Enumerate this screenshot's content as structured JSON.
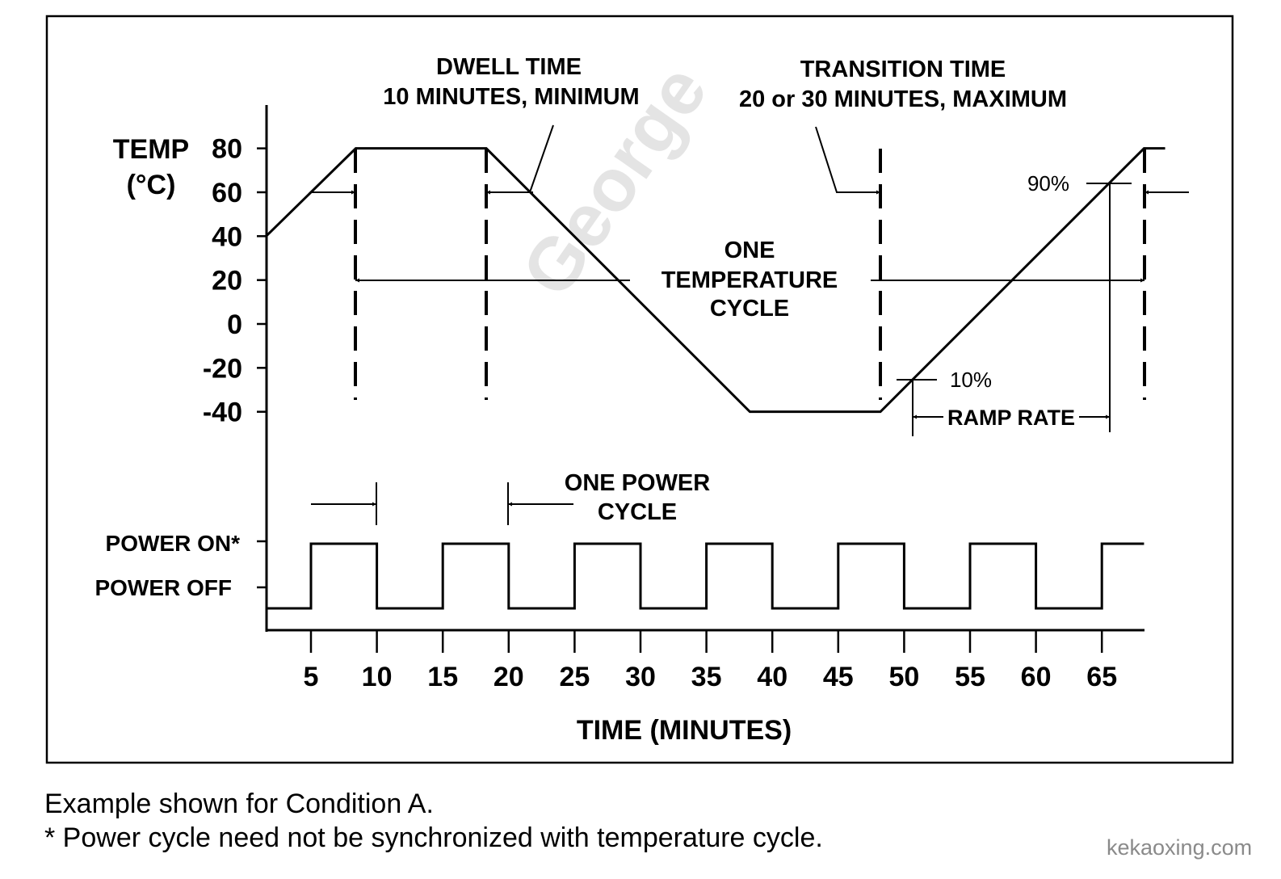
{
  "chart_data": {
    "type": "line",
    "title": "",
    "xlabel": "TIME (MINUTES)",
    "ylabel_line1": "TEMP",
    "ylabel_line2": "(°C)",
    "x_ticks": [
      "5",
      "10",
      "15",
      "20",
      "25",
      "30",
      "35",
      "40",
      "45",
      "50",
      "55",
      "60",
      "65"
    ],
    "x_tick_values": [
      5,
      10,
      15,
      20,
      25,
      30,
      35,
      40,
      45,
      50,
      55,
      60,
      65
    ],
    "y_ticks": [
      "80",
      "60",
      "40",
      "20",
      "0",
      "-20",
      "-40"
    ],
    "y_tick_values": [
      80,
      60,
      40,
      20,
      0,
      -20,
      -40
    ],
    "ylim": [
      -40,
      80
    ],
    "temperature_profile": {
      "name": "temperature",
      "x": [
        1.6,
        8.4,
        18.3,
        38.3,
        48.2,
        68.2,
        69.8
      ],
      "y": [
        40,
        80,
        80,
        -40,
        -40,
        80,
        80
      ]
    },
    "power_cycle": {
      "name": "power",
      "start": 1.6,
      "end": 68.2,
      "transition_times": [
        5,
        10,
        15,
        20,
        25,
        30,
        35,
        40,
        45,
        50,
        55,
        60,
        65
      ],
      "initial_state": "off"
    },
    "power_levels": {
      "on": "POWER ON*",
      "off": "POWER OFF"
    },
    "annotations": {
      "dwell_line1": "DWELL TIME",
      "dwell_line2": "10 MINUTES, MINIMUM",
      "transition_line1": "TRANSITION TIME",
      "transition_line2": "20 or 30 MINUTES, MAXIMUM",
      "temp_cycle_line1": "ONE",
      "temp_cycle_line2": "TEMPERATURE",
      "temp_cycle_line3": "CYCLE",
      "power_cycle_line1": "ONE POWER",
      "power_cycle_line2": "CYCLE",
      "pct90": "90%",
      "pct10": "10%",
      "ramp_rate": "RAMP RATE"
    },
    "watermark": "George"
  },
  "notes": {
    "line1": "Example shown for Condition A.",
    "line2": "* Power cycle need not be synchronized with temperature cycle."
  },
  "site": "kekaoxing.com"
}
